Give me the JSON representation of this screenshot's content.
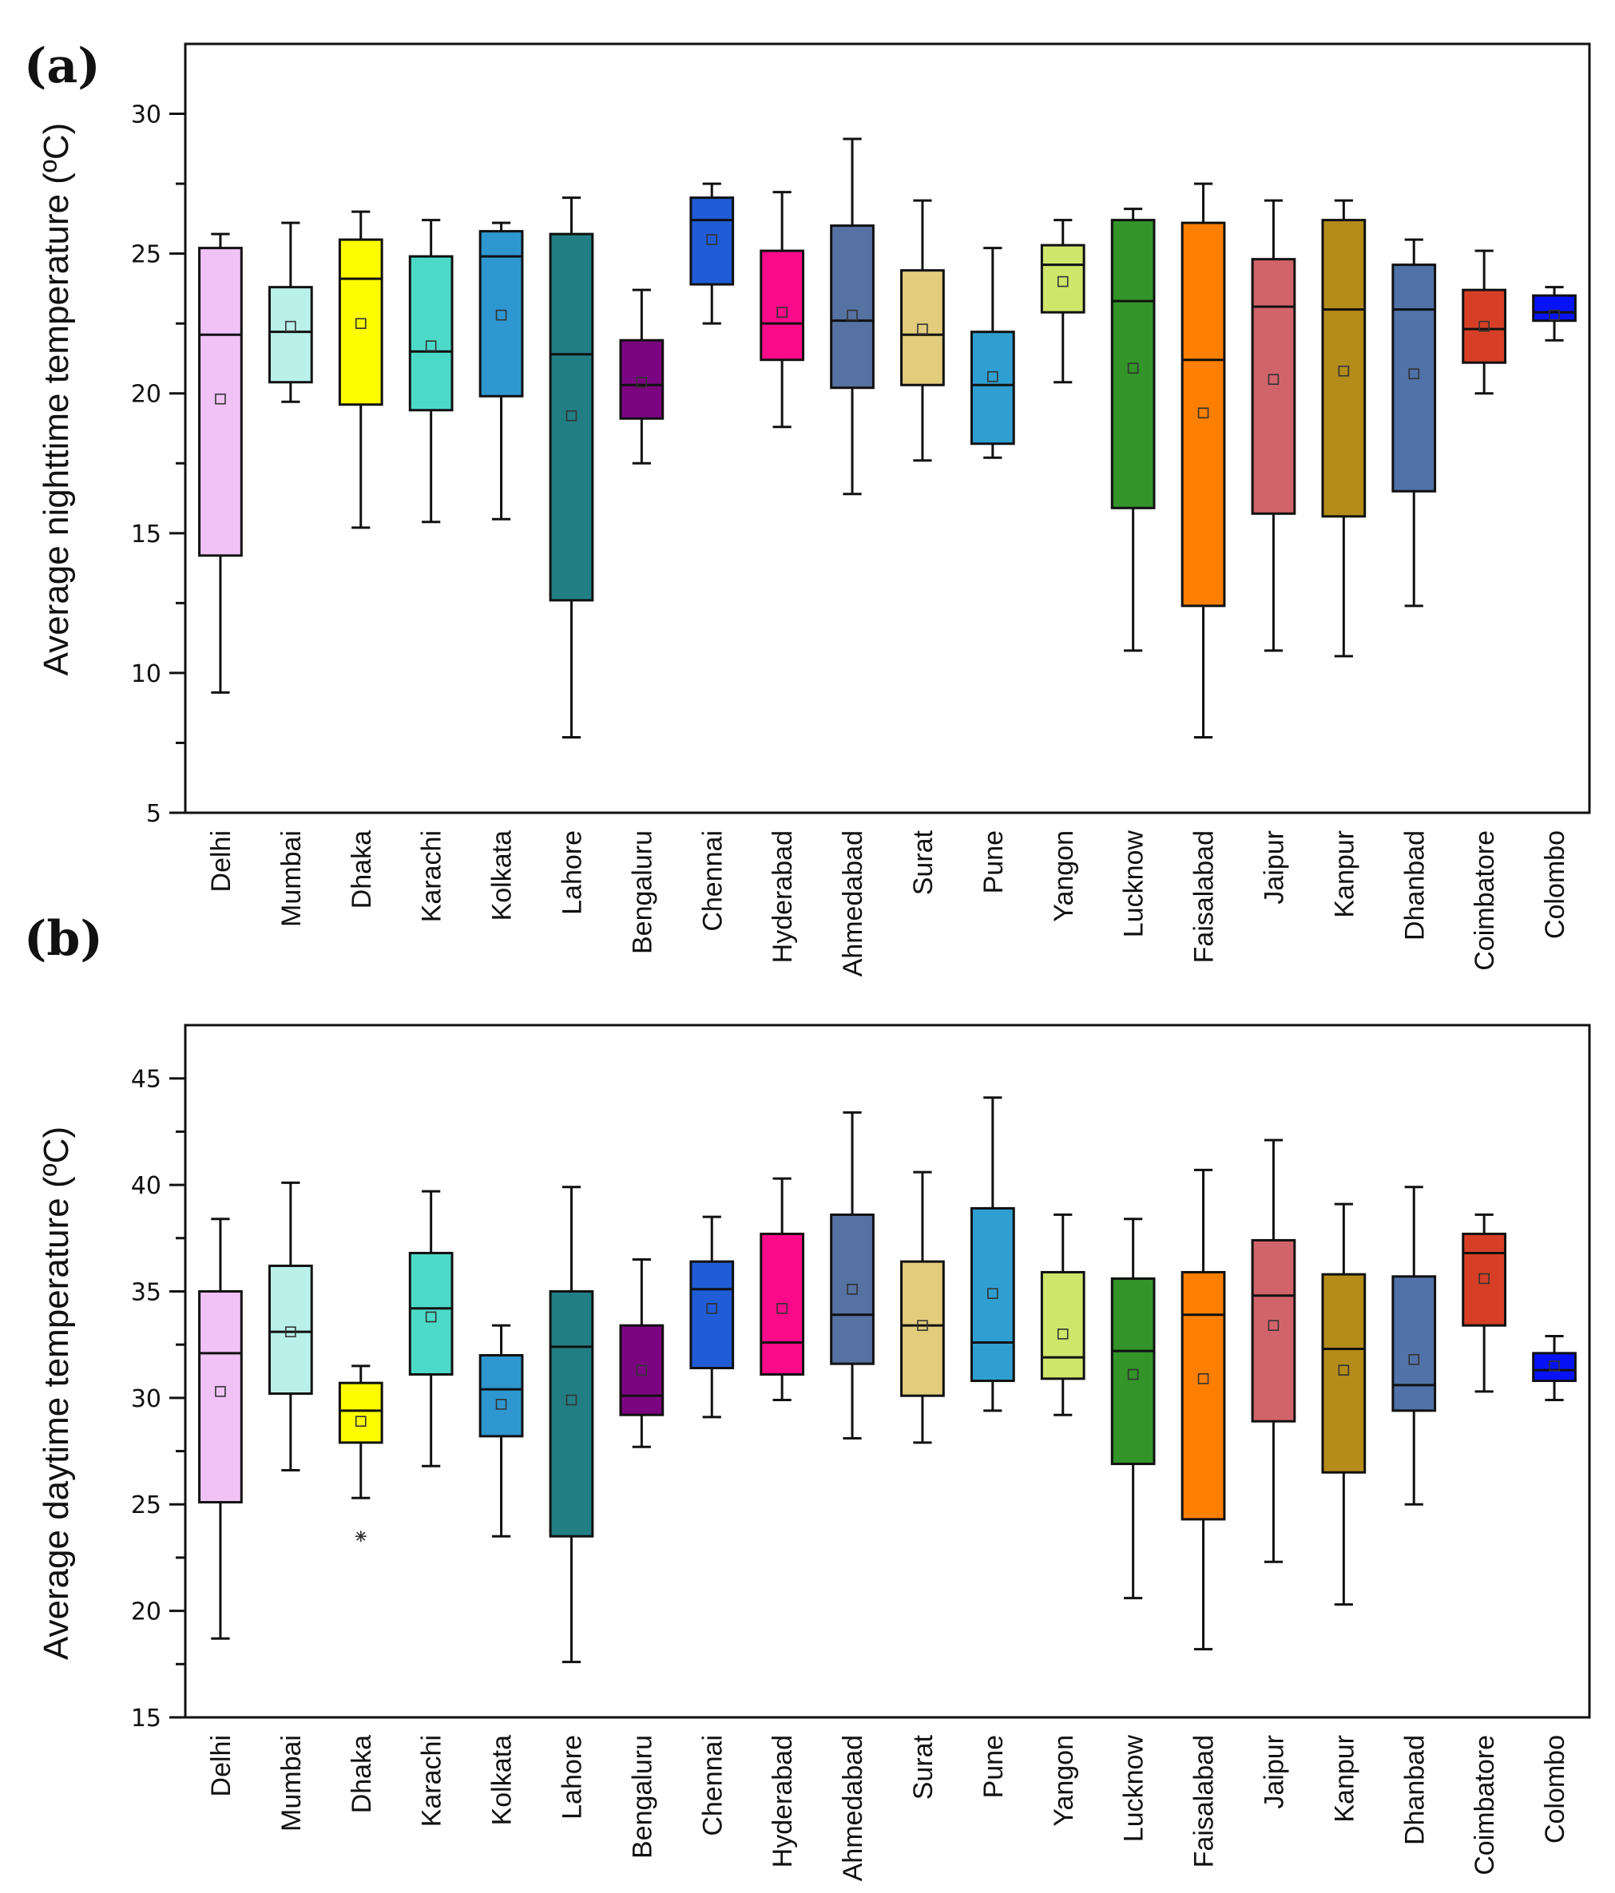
{
  "chart_data": [
    {
      "id": "a",
      "panel_label": "(a)",
      "type": "box",
      "ylabel": "Average nighttime temperature (ºC)",
      "ylim": [
        5,
        32.5
      ],
      "yticks": [
        5,
        10,
        15,
        20,
        25,
        30
      ],
      "ytick_labels": [
        "5",
        "10",
        "15",
        "20",
        "25",
        "30"
      ],
      "grid": false,
      "categories": [
        "Delhi",
        "Mumbai",
        "Dhaka",
        "Karachi",
        "Kolkata",
        "Lahore",
        "Bengaluru",
        "Chennai",
        "Hyderabad",
        "Ahmedabad",
        "Surat",
        "Pune",
        "Yangon",
        "Lucknow",
        "Faisalabad",
        "Jaipur",
        "Kanpur",
        "Dhanbad",
        "Coimbatore",
        "Colombo"
      ],
      "boxes": [
        {
          "min": 9.3,
          "q1": 14.2,
          "median": 22.1,
          "q3": 25.2,
          "max": 25.7,
          "mean": 19.8
        },
        {
          "min": 19.7,
          "q1": 20.4,
          "median": 22.2,
          "q3": 23.8,
          "max": 26.1,
          "mean": 22.4
        },
        {
          "min": 15.2,
          "q1": 19.6,
          "median": 24.1,
          "q3": 25.5,
          "max": 26.5,
          "mean": 22.5
        },
        {
          "min": 15.4,
          "q1": 19.4,
          "median": 21.5,
          "q3": 24.9,
          "max": 26.2,
          "mean": 21.7
        },
        {
          "min": 15.5,
          "q1": 19.9,
          "median": 24.9,
          "q3": 25.8,
          "max": 26.1,
          "mean": 22.8
        },
        {
          "min": 7.7,
          "q1": 12.6,
          "median": 21.4,
          "q3": 25.7,
          "max": 27.0,
          "mean": 19.2
        },
        {
          "min": 17.5,
          "q1": 19.1,
          "median": 20.3,
          "q3": 21.9,
          "max": 23.7,
          "mean": 20.4
        },
        {
          "min": 22.5,
          "q1": 23.9,
          "median": 26.2,
          "q3": 27.0,
          "max": 27.5,
          "mean": 25.5
        },
        {
          "min": 18.8,
          "q1": 21.2,
          "median": 22.5,
          "q3": 25.1,
          "max": 27.2,
          "mean": 22.9
        },
        {
          "min": 16.4,
          "q1": 20.2,
          "median": 22.6,
          "q3": 26.0,
          "max": 29.1,
          "mean": 22.8
        },
        {
          "min": 17.6,
          "q1": 20.3,
          "median": 22.1,
          "q3": 24.4,
          "max": 26.9,
          "mean": 22.3
        },
        {
          "min": 17.7,
          "q1": 18.2,
          "median": 20.3,
          "q3": 22.2,
          "max": 25.2,
          "mean": 20.6
        },
        {
          "min": 20.4,
          "q1": 22.9,
          "median": 24.6,
          "q3": 25.3,
          "max": 26.2,
          "mean": 24.0
        },
        {
          "min": 10.8,
          "q1": 15.9,
          "median": 23.3,
          "q3": 26.2,
          "max": 26.6,
          "mean": 20.9
        },
        {
          "min": 7.7,
          "q1": 12.4,
          "median": 21.2,
          "q3": 26.1,
          "max": 27.5,
          "mean": 19.3
        },
        {
          "min": 10.8,
          "q1": 15.7,
          "median": 23.1,
          "q3": 24.8,
          "max": 26.9,
          "mean": 20.5
        },
        {
          "min": 10.6,
          "q1": 15.6,
          "median": 23.0,
          "q3": 26.2,
          "max": 26.9,
          "mean": 20.8
        },
        {
          "min": 12.4,
          "q1": 16.5,
          "median": 23.0,
          "q3": 24.6,
          "max": 25.5,
          "mean": 20.7
        },
        {
          "min": 20.0,
          "q1": 21.1,
          "median": 22.3,
          "q3": 23.7,
          "max": 25.1,
          "mean": 22.4
        },
        {
          "min": 21.9,
          "q1": 22.6,
          "median": 22.9,
          "q3": 23.5,
          "max": 23.8,
          "mean": 22.8
        }
      ],
      "outliers": []
    },
    {
      "id": "b",
      "panel_label": "(b)",
      "type": "box",
      "ylabel": "Average daytime temperature (ºC)",
      "ylim": [
        15,
        47.5
      ],
      "yticks": [
        15,
        20,
        25,
        30,
        35,
        40,
        45
      ],
      "ytick_labels": [
        "15",
        "20",
        "25",
        "30",
        "35",
        "40",
        "45"
      ],
      "grid": false,
      "categories": [
        "Delhi",
        "Mumbai",
        "Dhaka",
        "Karachi",
        "Kolkata",
        "Lahore",
        "Bengaluru",
        "Chennai",
        "Hyderabad",
        "Ahmedabad",
        "Surat",
        "Pune",
        "Yangon",
        "Lucknow",
        "Faisalabad",
        "Jaipur",
        "Kanpur",
        "Dhanbad",
        "Coimbatore",
        "Colombo"
      ],
      "boxes": [
        {
          "min": 18.7,
          "q1": 25.1,
          "median": 32.1,
          "q3": 35.0,
          "max": 38.4,
          "mean": 30.3
        },
        {
          "min": 26.6,
          "q1": 30.2,
          "median": 33.1,
          "q3": 36.2,
          "max": 40.1,
          "mean": 33.1
        },
        {
          "min": 25.3,
          "q1": 27.9,
          "median": 29.4,
          "q3": 30.7,
          "max": 31.5,
          "mean": 28.9
        },
        {
          "min": 26.8,
          "q1": 31.1,
          "median": 34.2,
          "q3": 36.8,
          "max": 39.7,
          "mean": 33.8
        },
        {
          "min": 23.5,
          "q1": 28.2,
          "median": 30.4,
          "q3": 32.0,
          "max": 33.4,
          "mean": 29.7
        },
        {
          "min": 17.6,
          "q1": 23.5,
          "median": 32.4,
          "q3": 35.0,
          "max": 39.9,
          "mean": 29.9
        },
        {
          "min": 27.7,
          "q1": 29.2,
          "median": 30.1,
          "q3": 33.4,
          "max": 36.5,
          "mean": 31.3
        },
        {
          "min": 29.1,
          "q1": 31.4,
          "median": 35.1,
          "q3": 36.4,
          "max": 38.5,
          "mean": 34.2
        },
        {
          "min": 29.9,
          "q1": 31.1,
          "median": 32.6,
          "q3": 37.7,
          "max": 40.3,
          "mean": 34.2
        },
        {
          "min": 28.1,
          "q1": 31.6,
          "median": 33.9,
          "q3": 38.6,
          "max": 43.4,
          "mean": 35.1
        },
        {
          "min": 27.9,
          "q1": 30.1,
          "median": 33.4,
          "q3": 36.4,
          "max": 40.6,
          "mean": 33.4
        },
        {
          "min": 29.4,
          "q1": 30.8,
          "median": 32.6,
          "q3": 38.9,
          "max": 44.1,
          "mean": 34.9
        },
        {
          "min": 29.2,
          "q1": 30.9,
          "median": 31.9,
          "q3": 35.9,
          "max": 38.6,
          "mean": 33.0
        },
        {
          "min": 20.6,
          "q1": 26.9,
          "median": 32.2,
          "q3": 35.6,
          "max": 38.4,
          "mean": 31.1
        },
        {
          "min": 18.2,
          "q1": 24.3,
          "median": 33.9,
          "q3": 35.9,
          "max": 40.7,
          "mean": 30.9
        },
        {
          "min": 22.3,
          "q1": 28.9,
          "median": 34.8,
          "q3": 37.4,
          "max": 42.1,
          "mean": 33.4
        },
        {
          "min": 20.3,
          "q1": 26.5,
          "median": 32.3,
          "q3": 35.8,
          "max": 39.1,
          "mean": 31.3
        },
        {
          "min": 25.0,
          "q1": 29.4,
          "median": 30.6,
          "q3": 35.7,
          "max": 39.9,
          "mean": 31.8
        },
        {
          "min": 30.3,
          "q1": 33.4,
          "median": 36.8,
          "q3": 37.7,
          "max": 38.6,
          "mean": 35.6
        },
        {
          "min": 29.9,
          "q1": 30.8,
          "median": 31.3,
          "q3": 32.1,
          "max": 32.9,
          "mean": 31.5
        }
      ],
      "outliers": [
        {
          "category": "Dhaka",
          "value": 23.5
        }
      ]
    }
  ],
  "style": {
    "colors": [
      "#f0c2f6",
      "#b9f1ea",
      "#fdfd00",
      "#4cdac8",
      "#2f97d0",
      "#217f84",
      "#7b0481",
      "#1f5cd6",
      "#fb0a8a",
      "#5672a2",
      "#e2cd7d",
      "#2f9fd2",
      "#d0e66a",
      "#329429",
      "#fd7f01",
      "#d1646b",
      "#b48c19",
      "#5072a8",
      "#d63f25",
      "#0712f6"
    ],
    "stroke": "#111111",
    "background": "#ffffff"
  }
}
